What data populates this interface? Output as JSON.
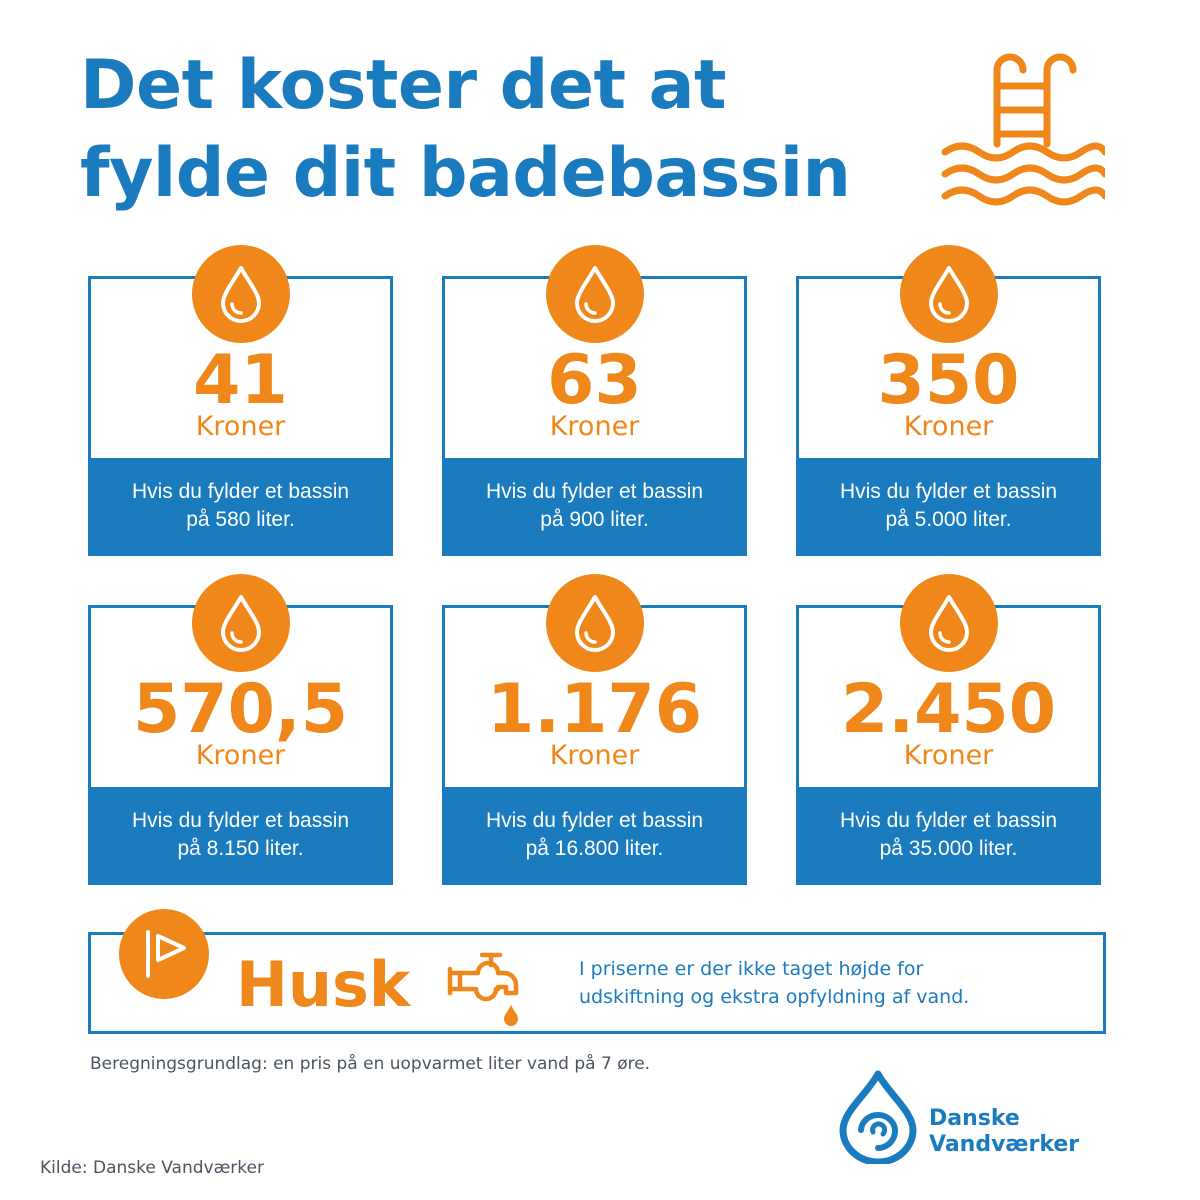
{
  "title": {
    "line1": "Det koster det at",
    "line2": "fylde dit badebassin"
  },
  "cards": [
    {
      "amount": "41",
      "unit": "Kroner",
      "desc_line1": "Hvis du fylder et bassin",
      "desc_line2": "på 580 liter."
    },
    {
      "amount": "63",
      "unit": "Kroner",
      "desc_line1": "Hvis du fylder et bassin",
      "desc_line2": "på 900 liter."
    },
    {
      "amount": "350",
      "unit": "Kroner",
      "desc_line1": "Hvis du fylder et bassin",
      "desc_line2": "på 5.000 liter."
    },
    {
      "amount": "570,5",
      "unit": "Kroner",
      "desc_line1": "Hvis du fylder et bassin",
      "desc_line2": "på 8.150 liter."
    },
    {
      "amount": "1.176",
      "unit": "Kroner",
      "desc_line1": "Hvis du fylder et bassin",
      "desc_line2": "på 16.800 liter."
    },
    {
      "amount": "2.450",
      "unit": "Kroner",
      "desc_line1": "Hvis du fylder et bassin",
      "desc_line2": "på 35.000 liter."
    }
  ],
  "husk": {
    "label": "Husk",
    "text_line1": "I priserne er der ikke taget højde for",
    "text_line2": "udskiftning og ekstra opfyldning af vand."
  },
  "footnote": "Beregningsgrundlag: en pris på en uopvarmet liter vand på 7 øre.",
  "source": "Kilde: Danske Vandværker",
  "logo": {
    "line1": "Danske",
    "line2": "Vandværker"
  },
  "icons": {
    "header": "swimming-pool-ladder-icon",
    "cards": "water-drop-icon",
    "husk_badge": "flag-icon",
    "husk": "water-tap-icon",
    "logo": "water-drop-logo-icon"
  },
  "colors": {
    "blue": "#1b7bbf",
    "orange": "#f0871a",
    "text_gray": "#4a5561"
  }
}
